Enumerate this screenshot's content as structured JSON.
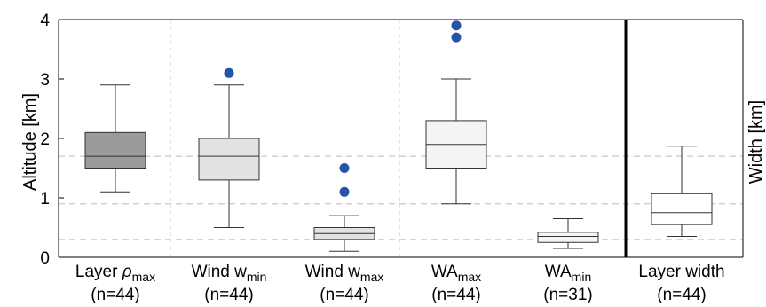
{
  "chart_data": {
    "type": "box",
    "ylabel": "Altitude [km]",
    "y2label": "Width [km]",
    "ylim": [
      0,
      4
    ],
    "yticks": [
      "0",
      "1",
      "2",
      "3",
      "4"
    ],
    "reference_lines": [
      1.7,
      0.9,
      0.3
    ],
    "colors": {
      "box_dark": "#9a9a9a",
      "box_mid": "#e2e2e2",
      "box_light": "#f4f4f4",
      "box_white": "#ffffff",
      "outlier": "#2255a4",
      "separator": "#000000"
    },
    "boxes": [
      {
        "label_main": "Layer ",
        "label_sym": "ρ",
        "label_sub": "max",
        "n_label": "(n=44)",
        "whisker_low": 1.1,
        "q1": 1.5,
        "median": 1.7,
        "q3": 2.1,
        "whisker_high": 2.9,
        "outliers": [],
        "fill": "box_dark"
      },
      {
        "label_main": "Wind w",
        "label_sym": "",
        "label_sub": "min",
        "n_label": "(n=44)",
        "whisker_low": 0.5,
        "q1": 1.3,
        "median": 1.7,
        "q3": 2.0,
        "whisker_high": 2.9,
        "outliers": [
          3.1
        ],
        "fill": "box_mid"
      },
      {
        "label_main": "Wind w",
        "label_sym": "",
        "label_sub": "max",
        "n_label": "(n=44)",
        "whisker_low": 0.1,
        "q1": 0.3,
        "median": 0.4,
        "q3": 0.5,
        "whisker_high": 0.7,
        "outliers": [
          1.1,
          1.5
        ],
        "fill": "box_mid"
      },
      {
        "label_main": "WA",
        "label_sym": "",
        "label_sub": "max",
        "n_label": "(n=44)",
        "whisker_low": 0.9,
        "q1": 1.5,
        "median": 1.9,
        "q3": 2.3,
        "whisker_high": 3.0,
        "outliers": [
          3.7,
          3.9
        ],
        "fill": "box_light"
      },
      {
        "label_main": "WA",
        "label_sym": "",
        "label_sub": "min",
        "n_label": "(n=31)",
        "whisker_low": 0.15,
        "q1": 0.25,
        "median": 0.35,
        "q3": 0.42,
        "whisker_high": 0.65,
        "outliers": [],
        "fill": "box_light"
      },
      {
        "label_main": "Layer width",
        "label_sym": "",
        "label_sub": "",
        "n_label": "(n=44)",
        "whisker_low": 0.35,
        "q1": 0.55,
        "median": 0.75,
        "q3": 1.07,
        "whisker_high": 1.87,
        "outliers": [],
        "fill": "box_white"
      }
    ]
  }
}
